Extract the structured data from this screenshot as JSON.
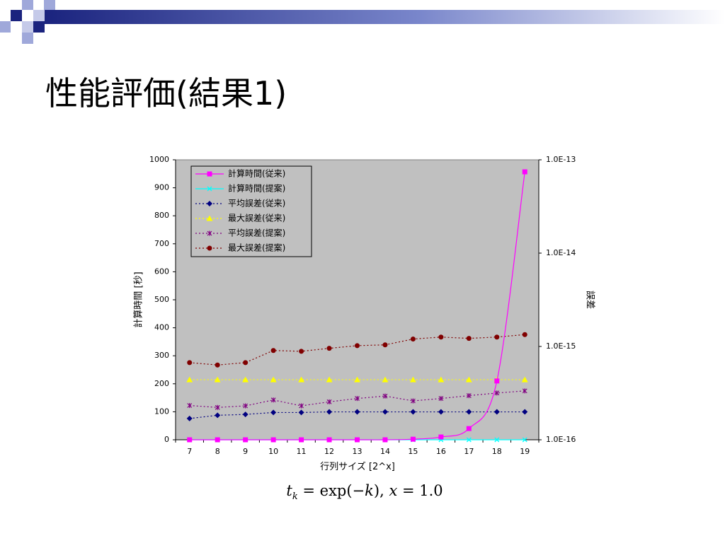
{
  "slide": {
    "title": "性能評価(結果1)",
    "caption": {
      "t": "t",
      "k_sub": "k",
      "eq1": " = exp(−",
      "k": "k",
      "eq2": "), ",
      "x": "x",
      "eq3": " = 1.0"
    }
  },
  "colors": {
    "plot_bg": "#c0c0c0",
    "band_dark": "#1a237e",
    "band_light": "#9fa8da"
  },
  "chart_data": {
    "type": "line",
    "x": [
      7,
      8,
      9,
      10,
      11,
      12,
      13,
      14,
      15,
      16,
      17,
      18,
      19
    ],
    "xlabel": "行列サイズ [2^x]",
    "ylabel": "計算時間 [秒]",
    "y2label": "誤差",
    "ylim": [
      0,
      1000
    ],
    "yticks": [
      "0",
      "100",
      "200",
      "300",
      "400",
      "500",
      "600",
      "700",
      "800",
      "900",
      "1000"
    ],
    "y2_scale": "log",
    "y2lim": [
      1e-16,
      1e-13
    ],
    "y2ticks": [
      "1.0E-16",
      "1.0E-15",
      "1.0E-14",
      "1.0E-13"
    ],
    "grid": false,
    "legend_position": "top-left",
    "series": [
      {
        "name": "計算時間(従来)",
        "axis": "left",
        "color": "#ff00ff",
        "line": "solid",
        "marker": "square",
        "values": [
          0,
          0,
          0,
          0,
          0,
          0,
          0,
          0,
          2,
          10,
          40,
          210,
          957
        ]
      },
      {
        "name": "計算時間(提案)",
        "axis": "left",
        "color": "#00ffff",
        "line": "solid",
        "marker": "cross",
        "values": [
          0,
          0,
          0,
          0,
          0,
          0,
          0,
          0,
          0,
          0,
          0,
          0,
          0
        ]
      },
      {
        "name": "平均誤差(従来)",
        "axis": "right",
        "color": "#000080",
        "line": "dotted",
        "marker": "diamond",
        "values": [
          1.69e-16,
          1.83e-16,
          1.87e-16,
          1.96e-16,
          1.96e-16,
          1.99e-16,
          1.99e-16,
          1.99e-16,
          1.99e-16,
          1.99e-16,
          1.99e-16,
          1.99e-16,
          1.99e-16
        ]
      },
      {
        "name": "最大誤差(従来)",
        "axis": "right",
        "color": "#ffff00",
        "line": "dotted",
        "marker": "triangle",
        "values": [
          4.4e-16,
          4.4e-16,
          4.4e-16,
          4.4e-16,
          4.4e-16,
          4.4e-16,
          4.4e-16,
          4.4e-16,
          4.4e-16,
          4.4e-16,
          4.4e-16,
          4.4e-16,
          4.4e-16
        ]
      },
      {
        "name": "平均誤差(提案)",
        "axis": "right",
        "color": "#800080",
        "line": "dotted",
        "marker": "star",
        "values": [
          2.33e-16,
          2.22e-16,
          2.31e-16,
          2.67e-16,
          2.31e-16,
          2.55e-16,
          2.77e-16,
          2.94e-16,
          2.61e-16,
          2.77e-16,
          2.97e-16,
          3.17e-16,
          3.34e-16
        ]
      },
      {
        "name": "最大誤差(提案)",
        "axis": "right",
        "color": "#800000",
        "line": "dotted",
        "marker": "circle",
        "values": [
          6.71e-16,
          6.33e-16,
          6.71e-16,
          9.05e-16,
          8.87e-16,
          9.55e-16,
          1.02e-15,
          1.04e-15,
          1.2e-15,
          1.26e-15,
          1.22e-15,
          1.26e-15,
          1.34e-15
        ]
      }
    ]
  }
}
